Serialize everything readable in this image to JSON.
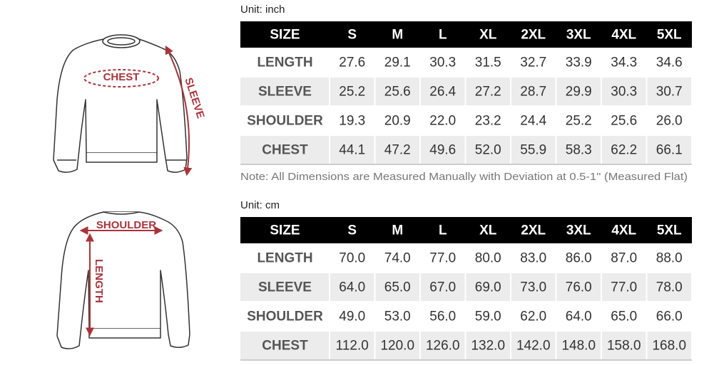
{
  "diagrams": {
    "front": {
      "chest": "CHEST",
      "sleeve": "SLEEVE"
    },
    "back": {
      "shoulder": "SHOULDER",
      "length": "LENGTH"
    }
  },
  "tables": [
    {
      "unit": "Unit: inch",
      "header": [
        "SIZE",
        "S",
        "M",
        "L",
        "XL",
        "2XL",
        "3XL",
        "4XL",
        "5XL"
      ],
      "rows": [
        [
          "LENGTH",
          "27.6",
          "29.1",
          "30.3",
          "31.5",
          "32.7",
          "33.9",
          "34.3",
          "34.6"
        ],
        [
          "SLEEVE",
          "25.2",
          "25.6",
          "26.4",
          "27.2",
          "28.7",
          "29.9",
          "30.3",
          "30.7"
        ],
        [
          "SHOULDER",
          "19.3",
          "20.9",
          "22.0",
          "23.2",
          "24.4",
          "25.2",
          "25.6",
          "26.0"
        ],
        [
          "CHEST",
          "44.1",
          "47.2",
          "49.6",
          "52.0",
          "55.9",
          "58.3",
          "62.2",
          "66.1"
        ]
      ],
      "note": "Note: All Dimensions are Measured Manually with Deviation at 0.5-1''  (Measured Flat)"
    },
    {
      "unit": "Unit: cm",
      "header": [
        "SIZE",
        "S",
        "M",
        "L",
        "XL",
        "2XL",
        "3XL",
        "4XL",
        "5XL"
      ],
      "rows": [
        [
          "LENGTH",
          "70.0",
          "74.0",
          "77.0",
          "80.0",
          "83.0",
          "86.0",
          "87.0",
          "88.0"
        ],
        [
          "SLEEVE",
          "64.0",
          "65.0",
          "67.0",
          "69.0",
          "73.0",
          "76.0",
          "77.0",
          "78.0"
        ],
        [
          "SHOULDER",
          "49.0",
          "53.0",
          "56.0",
          "59.0",
          "62.0",
          "64.0",
          "65.0",
          "66.0"
        ],
        [
          "CHEST",
          "112.0",
          "120.0",
          "126.0",
          "132.0",
          "142.0",
          "148.0",
          "158.0",
          "168.0"
        ]
      ]
    }
  ]
}
